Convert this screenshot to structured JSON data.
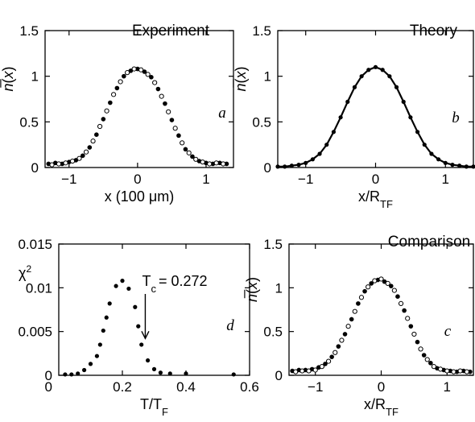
{
  "chart_data": [
    {
      "id": "a",
      "type": "scatter",
      "title": "Experiment",
      "panel_label": "a",
      "xlabel": "x (100 μm)",
      "ylabel": "n̄(x)",
      "xlim": [
        -1.35,
        1.4
      ],
      "ylim": [
        0,
        1.5
      ],
      "xticks": [
        -1,
        0,
        1
      ],
      "xtick_labels": [
        "−1",
        "0",
        "1"
      ],
      "yticks": [
        0,
        0.5,
        1,
        1.5
      ],
      "ytick_labels": [
        "0",
        "0.5",
        "1",
        "1.5"
      ],
      "series": [
        {
          "style": "filled-points",
          "x": [
            -1.3,
            -1.2,
            -1.1,
            -1.0,
            -0.9,
            -0.8,
            -0.7,
            -0.6,
            -0.5,
            -0.4,
            -0.3,
            -0.2,
            -0.1,
            0.0,
            0.1,
            0.2,
            0.3,
            0.4,
            0.5,
            0.6,
            0.7,
            0.8,
            0.9,
            1.0,
            1.1,
            1.2,
            1.3
          ],
          "y": [
            0.04,
            0.05,
            0.04,
            0.06,
            0.08,
            0.13,
            0.22,
            0.36,
            0.53,
            0.71,
            0.87,
            1.0,
            1.06,
            1.08,
            1.05,
            0.99,
            0.86,
            0.7,
            0.52,
            0.35,
            0.2,
            0.12,
            0.07,
            0.05,
            0.04,
            0.05,
            0.04
          ]
        },
        {
          "style": "open-points",
          "x": [
            -1.25,
            -1.15,
            -1.05,
            -0.95,
            -0.85,
            -0.75,
            -0.65,
            -0.55,
            -0.45,
            -0.35,
            -0.25,
            -0.15,
            -0.05,
            0.05,
            0.15,
            0.25,
            0.35,
            0.45,
            0.55,
            0.65,
            0.75,
            0.85,
            0.95,
            1.05,
            1.15,
            1.25
          ],
          "y": [
            0.03,
            0.04,
            0.05,
            0.07,
            0.1,
            0.17,
            0.29,
            0.45,
            0.62,
            0.8,
            0.94,
            1.04,
            1.08,
            1.07,
            1.02,
            0.93,
            0.78,
            0.61,
            0.43,
            0.27,
            0.16,
            0.09,
            0.06,
            0.04,
            0.05,
            0.04
          ]
        }
      ]
    },
    {
      "id": "b",
      "type": "line",
      "title": "Theory",
      "panel_label": "b",
      "xlabel": "x/R_TF",
      "ylabel": "n̄(x)",
      "xlim": [
        -1.4,
        1.4
      ],
      "ylim": [
        0,
        1.5
      ],
      "xticks": [
        -1,
        0,
        1
      ],
      "xtick_labels": [
        "−1",
        "0",
        "1"
      ],
      "yticks": [
        0,
        0.5,
        1,
        1.5
      ],
      "ytick_labels": [
        "0",
        "0.5",
        "1",
        "1.5"
      ],
      "series": [
        {
          "style": "line-with-points",
          "x": [
            -1.4,
            -1.3,
            -1.2,
            -1.1,
            -1.0,
            -0.9,
            -0.8,
            -0.7,
            -0.6,
            -0.5,
            -0.4,
            -0.3,
            -0.2,
            -0.1,
            0.0,
            0.1,
            0.2,
            0.3,
            0.4,
            0.5,
            0.6,
            0.7,
            0.8,
            0.9,
            1.0,
            1.1,
            1.2,
            1.3,
            1.4
          ],
          "y": [
            0.01,
            0.01,
            0.02,
            0.03,
            0.05,
            0.09,
            0.15,
            0.25,
            0.39,
            0.55,
            0.72,
            0.88,
            1.0,
            1.07,
            1.1,
            1.07,
            1.0,
            0.88,
            0.72,
            0.55,
            0.39,
            0.25,
            0.15,
            0.09,
            0.05,
            0.03,
            0.02,
            0.01,
            0.01
          ]
        }
      ]
    },
    {
      "id": "d",
      "type": "scatter",
      "title": "",
      "panel_label": "d",
      "xlabel": "T/T_F",
      "ylabel": "χ²",
      "xlim": [
        0,
        0.6
      ],
      "ylim": [
        0,
        0.015
      ],
      "xticks": [
        0.2,
        0.4,
        0.6
      ],
      "xtick_labels": [
        "0.2",
        "0.4",
        "0.6"
      ],
      "yticks": [
        0,
        0.005,
        0.01,
        0.015
      ],
      "ytick_labels": [
        "0",
        "0.005",
        "0.01",
        "0.015"
      ],
      "annotation": {
        "text_main": "T",
        "text_sub": "c",
        "text_value": "= 0.272",
        "x": 0.272,
        "y": 0.0042
      },
      "series": [
        {
          "style": "filled-points",
          "x": [
            0.02,
            0.04,
            0.06,
            0.08,
            0.1,
            0.12,
            0.13,
            0.14,
            0.15,
            0.16,
            0.18,
            0.2,
            0.22,
            0.24,
            0.25,
            0.26,
            0.28,
            0.3,
            0.32,
            0.35,
            0.4,
            0.55
          ],
          "y": [
            0.0001,
            0.0001,
            0.0002,
            0.0006,
            0.0013,
            0.0022,
            0.0035,
            0.0051,
            0.0066,
            0.0082,
            0.0102,
            0.0108,
            0.0099,
            0.0078,
            0.0056,
            0.0035,
            0.0017,
            0.0007,
            0.0003,
            0.0002,
            0.0002,
            0.0001
          ]
        }
      ]
    },
    {
      "id": "c",
      "type": "scatter",
      "title": "Comparison",
      "panel_label": "c",
      "xlabel": "x/R_TF",
      "ylabel": "n̄(x)",
      "xlim": [
        -1.4,
        1.4
      ],
      "ylim": [
        0,
        1.5
      ],
      "xticks": [
        -1,
        0,
        1
      ],
      "xtick_labels": [
        "−1",
        "0",
        "1"
      ],
      "yticks": [
        0,
        0.5,
        1,
        1.5
      ],
      "ytick_labels": [
        "0",
        "0.5",
        "1",
        "1.5"
      ],
      "series": [
        {
          "style": "filled-points",
          "x": [
            -1.35,
            -1.25,
            -1.15,
            -1.05,
            -0.95,
            -0.85,
            -0.75,
            -0.65,
            -0.55,
            -0.45,
            -0.35,
            -0.25,
            -0.15,
            -0.05,
            0.05,
            0.15,
            0.25,
            0.35,
            0.45,
            0.55,
            0.65,
            0.75,
            0.85,
            0.95,
            1.05,
            1.15,
            1.25,
            1.35
          ],
          "y": [
            0.05,
            0.06,
            0.06,
            0.07,
            0.09,
            0.13,
            0.21,
            0.33,
            0.47,
            0.64,
            0.82,
            0.96,
            1.05,
            1.09,
            1.07,
            1.02,
            0.9,
            0.74,
            0.56,
            0.38,
            0.23,
            0.14,
            0.08,
            0.06,
            0.05,
            0.04,
            0.05,
            0.04
          ]
        },
        {
          "style": "open-points",
          "x": [
            -1.3,
            -1.2,
            -1.1,
            -1.0,
            -0.9,
            -0.8,
            -0.7,
            -0.6,
            -0.5,
            -0.4,
            -0.3,
            -0.2,
            -0.1,
            0.0,
            0.1,
            0.2,
            0.3,
            0.4,
            0.5,
            0.6,
            0.7,
            0.8,
            0.9,
            1.0,
            1.1,
            1.2,
            1.3
          ],
          "y": [
            0.04,
            0.05,
            0.05,
            0.06,
            0.1,
            0.16,
            0.26,
            0.4,
            0.56,
            0.73,
            0.89,
            1.01,
            1.08,
            1.1,
            1.05,
            0.97,
            0.82,
            0.65,
            0.47,
            0.3,
            0.18,
            0.1,
            0.07,
            0.05,
            0.04,
            0.05,
            0.04
          ]
        }
      ]
    }
  ]
}
